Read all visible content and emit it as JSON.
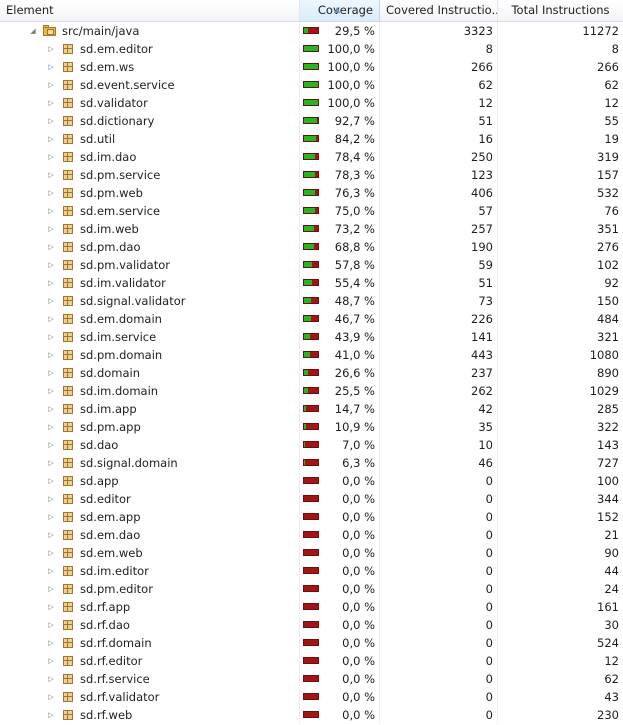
{
  "header": {
    "element": "Element",
    "coverage": "Coverage",
    "covered": "Covered Instructio...",
    "total": "Total Instructions"
  },
  "root": {
    "name": "src/main/java",
    "coverage_text": "29,5 %",
    "coverage": 0.295,
    "covered": "3323",
    "total": "11272"
  },
  "rows": [
    {
      "name": "sd.em.editor",
      "coverage_text": "100,0 %",
      "coverage": 1.0,
      "covered": "8",
      "total": "8"
    },
    {
      "name": "sd.em.ws",
      "coverage_text": "100,0 %",
      "coverage": 1.0,
      "covered": "266",
      "total": "266",
      "active": true
    },
    {
      "name": "sd.event.service",
      "coverage_text": "100,0 %",
      "coverage": 1.0,
      "covered": "62",
      "total": "62"
    },
    {
      "name": "sd.validator",
      "coverage_text": "100,0 %",
      "coverage": 1.0,
      "covered": "12",
      "total": "12"
    },
    {
      "name": "sd.dictionary",
      "coverage_text": "92,7 %",
      "coverage": 0.927,
      "covered": "51",
      "total": "55"
    },
    {
      "name": "sd.util",
      "coverage_text": "84,2 %",
      "coverage": 0.842,
      "covered": "16",
      "total": "19"
    },
    {
      "name": "sd.im.dao",
      "coverage_text": "78,4 %",
      "coverage": 0.784,
      "covered": "250",
      "total": "319"
    },
    {
      "name": "sd.pm.service",
      "coverage_text": "78,3 %",
      "coverage": 0.783,
      "covered": "123",
      "total": "157"
    },
    {
      "name": "sd.pm.web",
      "coverage_text": "76,3 %",
      "coverage": 0.763,
      "covered": "406",
      "total": "532"
    },
    {
      "name": "sd.em.service",
      "coverage_text": "75,0 %",
      "coverage": 0.75,
      "covered": "57",
      "total": "76"
    },
    {
      "name": "sd.im.web",
      "coverage_text": "73,2 %",
      "coverage": 0.732,
      "covered": "257",
      "total": "351"
    },
    {
      "name": "sd.pm.dao",
      "coverage_text": "68,8 %",
      "coverage": 0.688,
      "covered": "190",
      "total": "276"
    },
    {
      "name": "sd.pm.validator",
      "coverage_text": "57,8 %",
      "coverage": 0.578,
      "covered": "59",
      "total": "102"
    },
    {
      "name": "sd.im.validator",
      "coverage_text": "55,4 %",
      "coverage": 0.554,
      "covered": "51",
      "total": "92"
    },
    {
      "name": "sd.signal.validator",
      "coverage_text": "48,7 %",
      "coverage": 0.487,
      "covered": "73",
      "total": "150"
    },
    {
      "name": "sd.em.domain",
      "coverage_text": "46,7 %",
      "coverage": 0.467,
      "covered": "226",
      "total": "484"
    },
    {
      "name": "sd.im.service",
      "coverage_text": "43,9 %",
      "coverage": 0.439,
      "covered": "141",
      "total": "321"
    },
    {
      "name": "sd.pm.domain",
      "coverage_text": "41,0 %",
      "coverage": 0.41,
      "covered": "443",
      "total": "1080"
    },
    {
      "name": "sd.domain",
      "coverage_text": "26,6 %",
      "coverage": 0.266,
      "covered": "237",
      "total": "890"
    },
    {
      "name": "sd.im.domain",
      "coverage_text": "25,5 %",
      "coverage": 0.255,
      "covered": "262",
      "total": "1029"
    },
    {
      "name": "sd.im.app",
      "coverage_text": "14,7 %",
      "coverage": 0.147,
      "covered": "42",
      "total": "285"
    },
    {
      "name": "sd.pm.app",
      "coverage_text": "10,9 %",
      "coverage": 0.109,
      "covered": "35",
      "total": "322"
    },
    {
      "name": "sd.dao",
      "coverage_text": "7,0 %",
      "coverage": 0.07,
      "covered": "10",
      "total": "143"
    },
    {
      "name": "sd.signal.domain",
      "coverage_text": "6,3 %",
      "coverage": 0.063,
      "covered": "46",
      "total": "727"
    },
    {
      "name": "sd.app",
      "coverage_text": "0,0 %",
      "coverage": 0,
      "covered": "0",
      "total": "100"
    },
    {
      "name": "sd.editor",
      "coverage_text": "0,0 %",
      "coverage": 0,
      "covered": "0",
      "total": "344"
    },
    {
      "name": "sd.em.app",
      "coverage_text": "0,0 %",
      "coverage": 0,
      "covered": "0",
      "total": "152"
    },
    {
      "name": "sd.em.dao",
      "coverage_text": "0,0 %",
      "coverage": 0,
      "covered": "0",
      "total": "21"
    },
    {
      "name": "sd.em.web",
      "coverage_text": "0,0 %",
      "coverage": 0,
      "covered": "0",
      "total": "90"
    },
    {
      "name": "sd.im.editor",
      "coverage_text": "0,0 %",
      "coverage": 0,
      "covered": "0",
      "total": "44"
    },
    {
      "name": "sd.pm.editor",
      "coverage_text": "0,0 %",
      "coverage": 0,
      "covered": "0",
      "total": "24"
    },
    {
      "name": "sd.rf.app",
      "coverage_text": "0,0 %",
      "coverage": 0,
      "covered": "0",
      "total": "161"
    },
    {
      "name": "sd.rf.dao",
      "coverage_text": "0,0 %",
      "coverage": 0,
      "covered": "0",
      "total": "30"
    },
    {
      "name": "sd.rf.domain",
      "coverage_text": "0,0 %",
      "coverage": 0,
      "covered": "0",
      "total": "524"
    },
    {
      "name": "sd.rf.editor",
      "coverage_text": "0,0 %",
      "coverage": 0,
      "covered": "0",
      "total": "12"
    },
    {
      "name": "sd.rf.service",
      "coverage_text": "0,0 %",
      "coverage": 0,
      "covered": "0",
      "total": "62"
    },
    {
      "name": "sd.rf.validator",
      "coverage_text": "0,0 %",
      "coverage": 0,
      "covered": "0",
      "total": "43"
    },
    {
      "name": "sd.rf.web",
      "coverage_text": "0,0 %",
      "coverage": 0,
      "covered": "0",
      "total": "230"
    }
  ],
  "icons": {
    "root": "source-folder-icon",
    "package": "package-icon",
    "expand": "tree-expand-icon",
    "collapse": "tree-collapse-icon"
  },
  "colors": {
    "covered": "#22b822",
    "missed": "#a31515",
    "sorted_header": "#d9ecfb"
  }
}
